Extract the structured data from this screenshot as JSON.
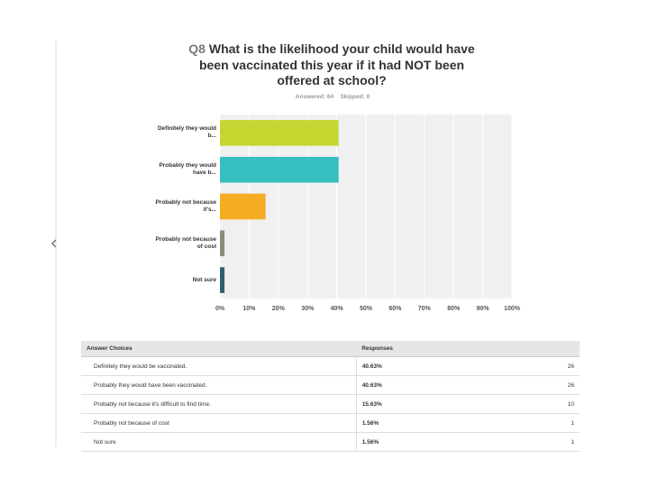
{
  "chart_data": {
    "type": "barh",
    "question_number": "Q8",
    "title": "What is the likelihood your child would have been vaccinated this year if it had NOT been offered at school?",
    "answered": "Answered: 64",
    "skipped": "Skipped: 0",
    "categories": [
      "Definitely they would b...",
      "Probably they would have b...",
      "Probably not because it's...",
      "Probably not because of cost",
      "Not sure"
    ],
    "values": [
      40.63,
      40.63,
      15.63,
      1.56,
      1.56
    ],
    "colors": [
      "#c6d630",
      "#36bfc1",
      "#f5ac22",
      "#8c8c7c",
      "#2e5e6f"
    ],
    "xlim": [
      0,
      100
    ],
    "xticks": [
      {
        "value": 0,
        "label": "0%"
      },
      {
        "value": 10,
        "label": "10%"
      },
      {
        "value": 20,
        "label": "20%"
      },
      {
        "value": 30,
        "label": "30%"
      },
      {
        "value": 40,
        "label": "40%"
      },
      {
        "value": 50,
        "label": "50%"
      },
      {
        "value": 60,
        "label": "60%"
      },
      {
        "value": 70,
        "label": "70%"
      },
      {
        "value": 80,
        "label": "80%"
      },
      {
        "value": 90,
        "label": "90%"
      },
      {
        "value": 100,
        "label": "100%"
      }
    ],
    "grid": true
  },
  "table": {
    "headers": [
      "Answer Choices",
      "Responses"
    ],
    "rows": [
      [
        "Definitely they would be vaccinated.",
        "40.63%",
        "26"
      ],
      [
        "Probably they would have been vaccinated.",
        "40.63%",
        "26"
      ],
      [
        "Probably not because it's difficult to find time.",
        "15.63%",
        "10"
      ],
      [
        "Probably not because of cost",
        "1.56%",
        "1"
      ],
      [
        "Not sure",
        "1.56%",
        "1"
      ]
    ]
  }
}
